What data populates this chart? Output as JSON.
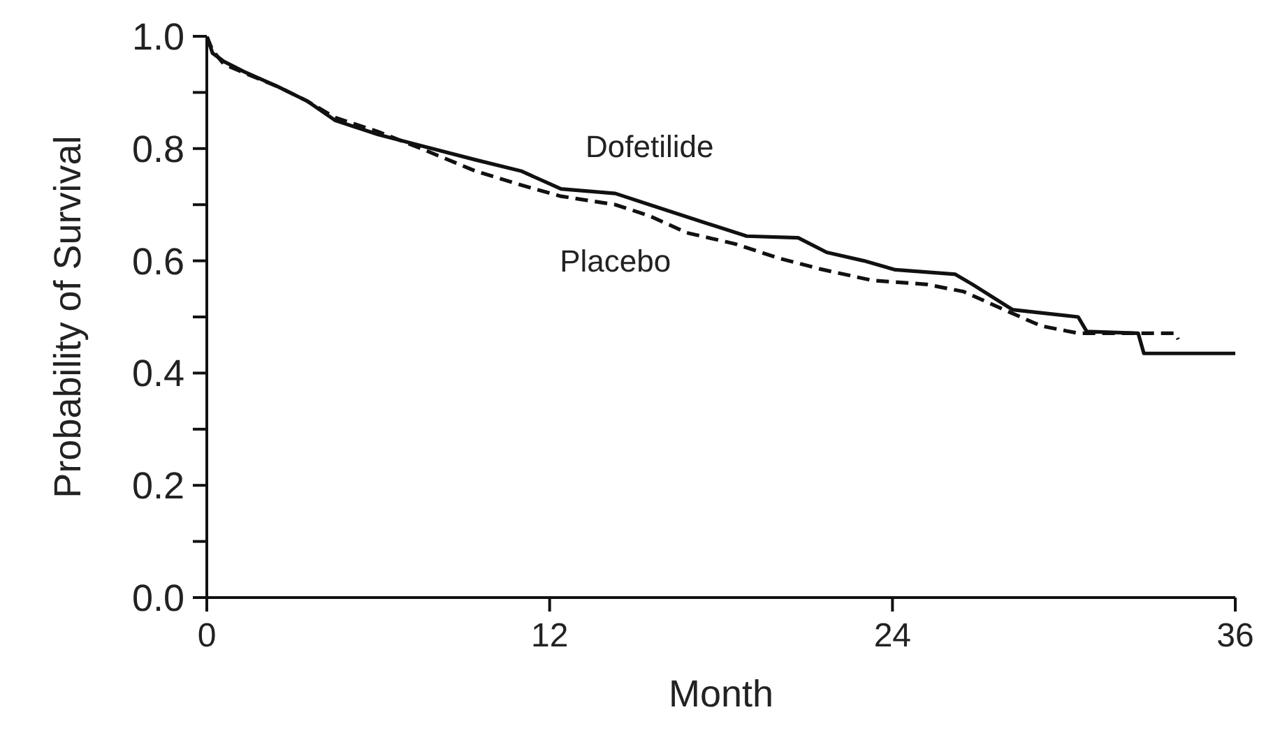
{
  "chart_data": {
    "type": "line",
    "xlabel": "Month",
    "ylabel": "Probability of Survival",
    "xlim": [
      0,
      36
    ],
    "xticks": [
      0,
      12,
      24,
      36
    ],
    "ylim": [
      0,
      1
    ],
    "yticks": [
      {
        "value": 0,
        "label": "0.0"
      },
      {
        "value": 0.1,
        "label": null
      },
      {
        "value": 0.2,
        "label": "0.2"
      },
      {
        "value": 0.3,
        "label": null
      },
      {
        "value": 0.4,
        "label": "0.4"
      },
      {
        "value": 0.5,
        "label": null
      },
      {
        "value": 0.6,
        "label": "0.6"
      },
      {
        "value": 0.7,
        "label": null
      },
      {
        "value": 0.8,
        "label": "0.8"
      },
      {
        "value": 0.9,
        "label": null
      },
      {
        "value": 1,
        "label": "1.0"
      }
    ],
    "grid": false,
    "legend": false,
    "marker": "none",
    "series": [
      {
        "name": "Dofetilide",
        "color": "#111111",
        "line_style": "solid",
        "x": [
          0,
          0.2,
          0.6,
          1.3,
          2.5,
          3.5,
          4.5,
          6,
          7.5,
          9.4,
          11,
          12.4,
          14.3,
          15.5,
          17.3,
          18.9,
          20.7,
          21.7,
          23,
          24.1,
          26.2,
          26.8,
          28.2,
          30.5,
          30.8,
          32.6,
          32.8,
          36
        ],
        "values": [
          1,
          0.97,
          0.955,
          0.937,
          0.91,
          0.885,
          0.85,
          0.825,
          0.805,
          0.78,
          0.76,
          0.728,
          0.72,
          0.7,
          0.67,
          0.644,
          0.641,
          0.615,
          0.6,
          0.584,
          0.576,
          0.558,
          0.513,
          0.5,
          0.474,
          0.471,
          0.435,
          0.435
        ]
      },
      {
        "name": "Placebo",
        "color": "#111111",
        "line_style": "dashed",
        "x": [
          0,
          0.2,
          0.6,
          1.3,
          2.5,
          3.5,
          4.5,
          6,
          7.5,
          9.4,
          11,
          12.4,
          14.3,
          15.5,
          16.8,
          18.5,
          20,
          21.5,
          23.3,
          25.2,
          26.5,
          27.9,
          29.2,
          30.5,
          33.9,
          34
        ],
        "values": [
          1,
          0.975,
          0.95,
          0.935,
          0.91,
          0.885,
          0.855,
          0.83,
          0.8,
          0.76,
          0.735,
          0.715,
          0.7,
          0.68,
          0.65,
          0.63,
          0.605,
          0.585,
          0.565,
          0.558,
          0.545,
          0.513,
          0.484,
          0.471,
          0.471,
          0.46
        ]
      }
    ]
  }
}
